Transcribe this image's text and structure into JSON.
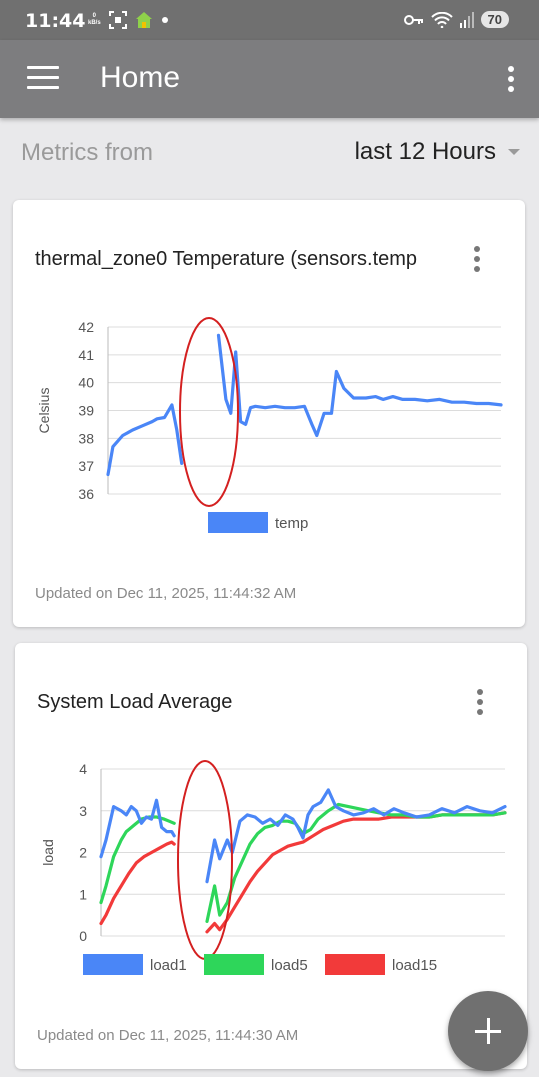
{
  "status_bar": {
    "time": "11:44",
    "netspeed_value": "0",
    "netspeed_unit": "kB/s",
    "battery": "70"
  },
  "app_bar": {
    "title": "Home"
  },
  "filter": {
    "label": "Metrics from",
    "value": "last 12 Hours"
  },
  "cards": [
    {
      "title": "thermal_zone0 Temperature (sensors.temp",
      "footer": "Updated on Dec 11, 2025, 11:44:32 AM"
    },
    {
      "title": "System Load Average",
      "footer": "Updated on Dec 11, 2025, 11:44:30 AM"
    }
  ],
  "chart_data": [
    {
      "type": "line",
      "ylabel": "Celsius",
      "ylim": [
        36,
        42
      ],
      "yticks": [
        42,
        41,
        40,
        39,
        38,
        37,
        36
      ],
      "grid": true,
      "legend_position": "bottom",
      "series": [
        {
          "name": "temp",
          "color": "#4a86f7",
          "segments": [
            [
              [
                0,
                36.7
              ],
              [
                0.02,
                37.7
              ],
              [
                0.06,
                38.1
              ],
              [
                0.1,
                38.3
              ],
              [
                0.14,
                38.45
              ],
              [
                0.18,
                38.6
              ],
              [
                0.2,
                38.7
              ],
              [
                0.23,
                38.75
              ],
              [
                0.26,
                39.2
              ],
              [
                0.28,
                38.3
              ],
              [
                0.3,
                37.1
              ]
            ],
            [
              [
                0.45,
                41.7
              ],
              [
                0.48,
                39.4
              ],
              [
                0.5,
                38.9
              ],
              [
                0.52,
                41.1
              ],
              [
                0.54,
                38.6
              ],
              [
                0.56,
                38.5
              ],
              [
                0.58,
                39.1
              ],
              [
                0.6,
                39.15
              ],
              [
                0.64,
                39.1
              ],
              [
                0.68,
                39.15
              ],
              [
                0.72,
                39.1
              ],
              [
                0.76,
                39.1
              ],
              [
                0.8,
                39.15
              ],
              [
                0.83,
                38.5
              ],
              [
                0.85,
                38.1
              ],
              [
                0.88,
                38.9
              ],
              [
                0.91,
                38.9
              ],
              [
                0.93,
                40.4
              ],
              [
                0.96,
                39.8
              ],
              [
                1.0,
                39.45
              ],
              [
                1.05,
                39.45
              ],
              [
                1.09,
                39.5
              ],
              [
                1.12,
                39.4
              ],
              [
                1.16,
                39.5
              ],
              [
                1.2,
                39.4
              ],
              [
                1.25,
                39.4
              ],
              [
                1.3,
                39.35
              ],
              [
                1.35,
                39.4
              ],
              [
                1.4,
                39.3
              ],
              [
                1.45,
                39.3
              ],
              [
                1.5,
                39.25
              ],
              [
                1.55,
                39.25
              ],
              [
                1.6,
                39.2
              ]
            ]
          ]
        }
      ]
    },
    {
      "type": "line",
      "ylabel": "load",
      "ylim": [
        0,
        4
      ],
      "yticks": [
        4,
        3,
        2,
        1,
        0
      ],
      "grid": true,
      "legend_position": "bottom",
      "series": [
        {
          "name": "load1",
          "color": "#4a86f7",
          "segments": [
            [
              [
                0,
                1.9
              ],
              [
                0.02,
                2.3
              ],
              [
                0.05,
                3.1
              ],
              [
                0.08,
                3.0
              ],
              [
                0.1,
                2.9
              ],
              [
                0.12,
                3.1
              ],
              [
                0.14,
                3.0
              ],
              [
                0.16,
                2.7
              ],
              [
                0.18,
                2.85
              ],
              [
                0.2,
                2.8
              ],
              [
                0.22,
                3.25
              ],
              [
                0.24,
                2.6
              ],
              [
                0.26,
                2.5
              ],
              [
                0.28,
                2.5
              ],
              [
                0.29,
                2.4
              ]
            ],
            [
              [
                0.42,
                1.3
              ],
              [
                0.45,
                2.3
              ],
              [
                0.47,
                1.85
              ],
              [
                0.5,
                2.3
              ],
              [
                0.52,
                2.0
              ],
              [
                0.55,
                2.75
              ],
              [
                0.58,
                2.9
              ],
              [
                0.61,
                2.85
              ],
              [
                0.64,
                2.7
              ],
              [
                0.67,
                2.8
              ],
              [
                0.7,
                2.65
              ],
              [
                0.73,
                2.9
              ],
              [
                0.76,
                2.8
              ],
              [
                0.78,
                2.6
              ],
              [
                0.8,
                2.35
              ],
              [
                0.82,
                2.9
              ],
              [
                0.84,
                3.1
              ],
              [
                0.87,
                3.2
              ],
              [
                0.9,
                3.5
              ],
              [
                0.93,
                3.1
              ],
              [
                0.96,
                3.0
              ],
              [
                1.0,
                2.9
              ],
              [
                1.04,
                2.95
              ],
              [
                1.08,
                3.05
              ],
              [
                1.12,
                2.9
              ],
              [
                1.16,
                3.05
              ],
              [
                1.2,
                2.95
              ],
              [
                1.25,
                2.85
              ],
              [
                1.3,
                2.9
              ],
              [
                1.35,
                3.05
              ],
              [
                1.4,
                2.95
              ],
              [
                1.45,
                3.1
              ],
              [
                1.5,
                3.0
              ],
              [
                1.55,
                2.95
              ],
              [
                1.6,
                3.1
              ]
            ]
          ]
        },
        {
          "name": "load5",
          "color": "#2ed65a",
          "segments": [
            [
              [
                0,
                0.8
              ],
              [
                0.02,
                1.2
              ],
              [
                0.05,
                1.9
              ],
              [
                0.08,
                2.3
              ],
              [
                0.1,
                2.5
              ],
              [
                0.13,
                2.65
              ],
              [
                0.16,
                2.8
              ],
              [
                0.19,
                2.85
              ],
              [
                0.22,
                2.85
              ],
              [
                0.25,
                2.8
              ],
              [
                0.27,
                2.75
              ],
              [
                0.29,
                2.7
              ]
            ],
            [
              [
                0.42,
                0.35
              ],
              [
                0.45,
                1.2
              ],
              [
                0.47,
                0.5
              ],
              [
                0.5,
                0.8
              ],
              [
                0.53,
                1.4
              ],
              [
                0.56,
                1.8
              ],
              [
                0.59,
                2.2
              ],
              [
                0.62,
                2.45
              ],
              [
                0.65,
                2.6
              ],
              [
                0.68,
                2.65
              ],
              [
                0.71,
                2.75
              ],
              [
                0.74,
                2.75
              ],
              [
                0.77,
                2.7
              ],
              [
                0.8,
                2.45
              ],
              [
                0.83,
                2.55
              ],
              [
                0.86,
                2.8
              ],
              [
                0.9,
                3.0
              ],
              [
                0.94,
                3.15
              ],
              [
                0.98,
                3.1
              ],
              [
                1.02,
                3.05
              ],
              [
                1.06,
                3.0
              ],
              [
                1.1,
                2.95
              ],
              [
                1.15,
                2.9
              ],
              [
                1.2,
                2.9
              ],
              [
                1.25,
                2.85
              ],
              [
                1.3,
                2.85
              ],
              [
                1.35,
                2.9
              ],
              [
                1.4,
                2.9
              ],
              [
                1.45,
                2.9
              ],
              [
                1.5,
                2.9
              ],
              [
                1.55,
                2.9
              ],
              [
                1.6,
                2.95
              ]
            ]
          ]
        },
        {
          "name": "load15",
          "color": "#f23a3a",
          "segments": [
            [
              [
                0,
                0.3
              ],
              [
                0.02,
                0.5
              ],
              [
                0.05,
                0.9
              ],
              [
                0.08,
                1.2
              ],
              [
                0.11,
                1.5
              ],
              [
                0.14,
                1.75
              ],
              [
                0.17,
                1.9
              ],
              [
                0.2,
                2.0
              ],
              [
                0.23,
                2.1
              ],
              [
                0.26,
                2.2
              ],
              [
                0.28,
                2.25
              ],
              [
                0.29,
                2.2
              ]
            ],
            [
              [
                0.42,
                0.1
              ],
              [
                0.45,
                0.3
              ],
              [
                0.47,
                0.15
              ],
              [
                0.5,
                0.4
              ],
              [
                0.53,
                0.7
              ],
              [
                0.56,
                1.0
              ],
              [
                0.59,
                1.3
              ],
              [
                0.62,
                1.55
              ],
              [
                0.65,
                1.75
              ],
              [
                0.68,
                1.95
              ],
              [
                0.71,
                2.05
              ],
              [
                0.74,
                2.15
              ],
              [
                0.77,
                2.2
              ],
              [
                0.8,
                2.25
              ],
              [
                0.84,
                2.4
              ],
              [
                0.88,
                2.55
              ],
              [
                0.92,
                2.65
              ],
              [
                0.96,
                2.75
              ],
              [
                1.0,
                2.8
              ],
              [
                1.05,
                2.8
              ],
              [
                1.1,
                2.8
              ],
              [
                1.15,
                2.85
              ],
              [
                1.2,
                2.85
              ],
              [
                1.25,
                2.85
              ],
              [
                1.3,
                2.85
              ],
              [
                1.35,
                2.9
              ],
              [
                1.4,
                2.9
              ],
              [
                1.45,
                2.9
              ],
              [
                1.5,
                2.9
              ],
              [
                1.55,
                2.9
              ],
              [
                1.6,
                2.95
              ]
            ]
          ]
        }
      ]
    }
  ]
}
